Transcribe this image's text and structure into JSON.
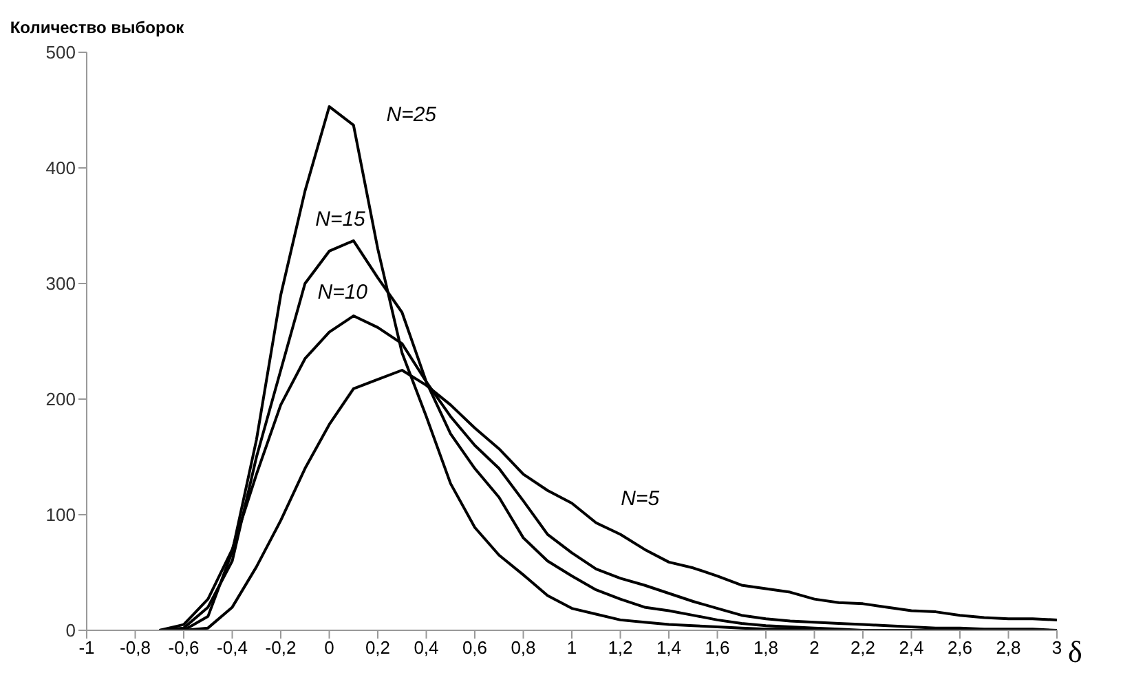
{
  "chart_data": {
    "type": "line",
    "ylabel": "Количество выборок",
    "xlabel": "δ",
    "x": [
      -0.7,
      -0.6,
      -0.5,
      -0.4,
      -0.3,
      -0.2,
      -0.1,
      0,
      0.1,
      0.2,
      0.3,
      0.4,
      0.5,
      0.6,
      0.7,
      0.8,
      0.9,
      1,
      1.1,
      1.2,
      1.3,
      1.4,
      1.5,
      1.6,
      1.7,
      1.8,
      1.9,
      2,
      2.1,
      2.2,
      2.3,
      2.4,
      2.5,
      2.6,
      2.7,
      2.8,
      2.9,
      3
    ],
    "series": [
      {
        "color": "#000000",
        "values": [
          0,
          0,
          2,
          20,
          55,
          95,
          140,
          178,
          209,
          217,
          225,
          212,
          195,
          175,
          157,
          135,
          121,
          110,
          93,
          83,
          70,
          59,
          54,
          47,
          39,
          36,
          33,
          27,
          24,
          23,
          20,
          17,
          16,
          13,
          11,
          10,
          10,
          9
        ]
      },
      {
        "color": "#000000",
        "values": [
          0,
          5,
          27,
          70,
          135,
          195,
          235,
          258,
          272,
          262,
          248,
          215,
          185,
          160,
          140,
          112,
          83,
          67,
          53,
          45,
          39,
          32,
          25,
          19,
          13,
          10,
          8,
          7,
          6,
          5,
          4,
          3,
          2,
          2,
          1,
          1,
          1,
          0
        ]
      },
      {
        "color": "#000000",
        "values": [
          0,
          2,
          20,
          60,
          150,
          225,
          300,
          328,
          337,
          305,
          275,
          215,
          170,
          140,
          115,
          80,
          60,
          47,
          35,
          27,
          20,
          17,
          13,
          9,
          6,
          4,
          3,
          2,
          1,
          0,
          0,
          0,
          0,
          0,
          0,
          0,
          0,
          0
        ]
      },
      {
        "color": "#000000",
        "values": [
          0,
          0,
          12,
          68,
          165,
          290,
          380,
          453,
          437,
          330,
          240,
          185,
          127,
          89,
          65,
          48,
          30,
          19,
          14,
          9,
          7,
          5,
          4,
          3,
          2,
          1,
          1,
          0,
          0,
          0,
          0,
          0,
          0,
          0,
          0,
          0,
          0,
          0
        ]
      }
    ],
    "annotations": [
      {
        "text": "N=5",
        "x": 1.1,
        "y": 93
      },
      {
        "text": "N=10",
        "x": 0.1,
        "y": 272
      },
      {
        "text": "N=15",
        "x": 0,
        "y": 328
      },
      {
        "text": "N=25",
        "x": 0.1,
        "y": 437
      }
    ],
    "xlim": [
      -1,
      3
    ],
    "xticks": [
      -1,
      {
        "value": -0.8,
        "label": "-0,8"
      },
      {
        "value": -0.6,
        "label": "-0,6"
      },
      {
        "value": -0.4,
        "label": "-0,4"
      },
      {
        "value": -0.2,
        "label": "-0,2"
      },
      0,
      {
        "value": 0.2,
        "label": "0,2"
      },
      {
        "value": 0.4,
        "label": "0,4"
      },
      {
        "value": 0.6,
        "label": "0,6"
      },
      {
        "value": 0.8,
        "label": "0,8"
      },
      1,
      {
        "value": 1.2,
        "label": "1,2"
      },
      {
        "value": 1.4,
        "label": "1,4"
      },
      {
        "value": 1.6,
        "label": "1,6"
      },
      {
        "value": 1.8,
        "label": "1,8"
      },
      2,
      {
        "value": 2.2,
        "label": "2,2"
      },
      {
        "value": 2.4,
        "label": "2,4"
      },
      {
        "value": 2.6,
        "label": "2,6"
      },
      {
        "value": 2.8,
        "label": "2,8"
      },
      3
    ],
    "ylim": [
      0,
      500
    ],
    "yticks": [
      0,
      100,
      200,
      300,
      400,
      500
    ],
    "grid": false,
    "marker": "none",
    "line_style": "solid",
    "legend": false
  }
}
